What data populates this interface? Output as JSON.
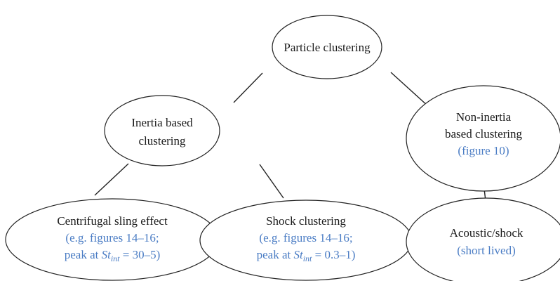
{
  "nodes": [
    {
      "lines": [
        "Particle clustering"
      ]
    },
    {
      "lines": [
        "Inertia based",
        "clustering"
      ]
    },
    {
      "lines": [
        "Non-inertia",
        "based clustering"
      ],
      "note": "(figure 10)"
    },
    {
      "lines": [
        "Centrifugal sling effect"
      ],
      "note": "(e.g. figures 14–16;",
      "peak": {
        "prefix": "peak at ",
        "symbol": "St",
        "subscript": "int",
        "suffix": " = 30–5)"
      }
    },
    {
      "lines": [
        "Shock clustering"
      ],
      "note": "(e.g. figures 14–16;",
      "peak": {
        "prefix": "peak at ",
        "symbol": "St",
        "subscript": "int",
        "suffix": " = 0.3–1)"
      }
    },
    {
      "lines": [
        "Acoustic/shock"
      ],
      "note": "(short lived)"
    }
  ]
}
